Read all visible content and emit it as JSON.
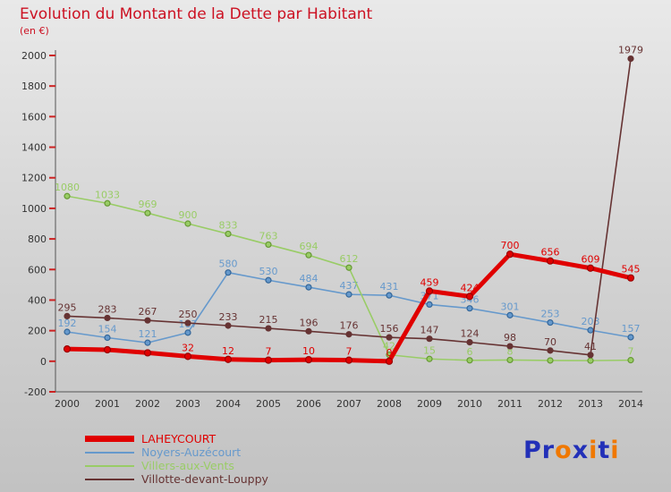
{
  "title": "Evolution du Montant de la Dette par Habitant",
  "subtitle": "(en €)",
  "colors": {
    "title": "#cc1122",
    "axis": "#555555",
    "axis_text": "#333333",
    "tick": "#cc2222",
    "background_top": "#e9e9e9",
    "background_bottom": "#c2c2c2"
  },
  "chart_data": {
    "type": "line",
    "x": [
      2000,
      2001,
      2002,
      2003,
      2004,
      2005,
      2006,
      2007,
      2008,
      2009,
      2010,
      2011,
      2012,
      2013,
      2014
    ],
    "ylim": [
      -200,
      2000
    ],
    "yticks": [
      -200,
      0,
      200,
      400,
      600,
      800,
      1000,
      1200,
      1400,
      1600,
      1800,
      2000
    ],
    "grid": false,
    "legend_position": "bottom-left",
    "series": [
      {
        "name": "LAHEYCOURT",
        "color": "#e00000",
        "marker": "#990000",
        "width": 5,
        "values": [
          80,
          75,
          55,
          32,
          12,
          7,
          10,
          7,
          0,
          459,
          424,
          700,
          656,
          609,
          545
        ],
        "labels": [
          "",
          "",
          "",
          "32",
          "12",
          "7",
          "10",
          "7",
          "0",
          "459",
          "424",
          "700",
          "656",
          "609",
          "545"
        ]
      },
      {
        "name": "Noyers-Auzécourt",
        "color": "#6699cc",
        "marker": "#336699",
        "width": 1.6,
        "values": [
          192,
          154,
          121,
          187,
          580,
          530,
          484,
          437,
          431,
          371,
          346,
          301,
          253,
          203,
          157
        ],
        "labels": [
          "192",
          "154",
          "121",
          "187",
          "580",
          "530",
          "484",
          "437",
          "431",
          "371",
          "346",
          "301",
          "253",
          "203",
          "157"
        ]
      },
      {
        "name": "Villers-aux-Vents",
        "color": "#99cc66",
        "marker": "#669933",
        "width": 1.6,
        "values": [
          1080,
          1033,
          969,
          900,
          833,
          763,
          694,
          612,
          42,
          15,
          6,
          8,
          5,
          4,
          7
        ],
        "labels": [
          "1080",
          "1033",
          "969",
          "900",
          "833",
          "763",
          "694",
          "612",
          "42",
          "15",
          "6",
          "8",
          "",
          "",
          "7"
        ]
      },
      {
        "name": "Villotte-devant-Louppy",
        "color": "#663333",
        "marker": "#663333",
        "width": 1.6,
        "values": [
          295,
          283,
          267,
          250,
          233,
          215,
          196,
          176,
          156,
          147,
          124,
          98,
          70,
          41,
          1979
        ],
        "labels": [
          "295",
          "283",
          "267",
          "250",
          "233",
          "215",
          "196",
          "176",
          "156",
          "147",
          "124",
          "98",
          "70",
          "41",
          "1979"
        ]
      }
    ]
  },
  "logo": {
    "text": "Proxiti",
    "letters": [
      {
        "ch": "P",
        "color": "#2230b8"
      },
      {
        "ch": "r",
        "color": "#2230b8"
      },
      {
        "ch": "o",
        "color": "#f07800"
      },
      {
        "ch": "x",
        "color": "#2230b8"
      },
      {
        "ch": "i",
        "color": "#f07800"
      },
      {
        "ch": "t",
        "color": "#2230b8"
      },
      {
        "ch": "i",
        "color": "#f07800"
      }
    ]
  }
}
